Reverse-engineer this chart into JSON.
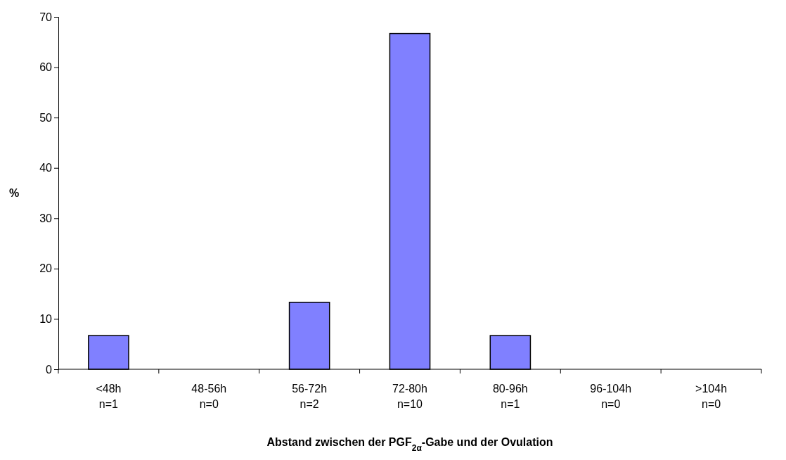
{
  "chart_data": {
    "type": "bar",
    "xlabel": "Abstand zwischen der PGF$_{2α}$-Gabe und der Ovulation",
    "ylabel": "%",
    "categories": [
      "<48h\nn=1",
      "48-56h\nn=0",
      "56-72h\nn=2",
      "72-80h\nn=10",
      "80-96h\nn=1",
      "96-104h\nn=0",
      ">104h\nn=0"
    ],
    "values": [
      6.7,
      0,
      13.3,
      66.7,
      6.7,
      0,
      0
    ],
    "color": "#8080ff",
    "ylim": [
      0,
      70
    ],
    "yticks": [
      0,
      10,
      20,
      30,
      40,
      50,
      60,
      70
    ],
    "grid": false
  }
}
